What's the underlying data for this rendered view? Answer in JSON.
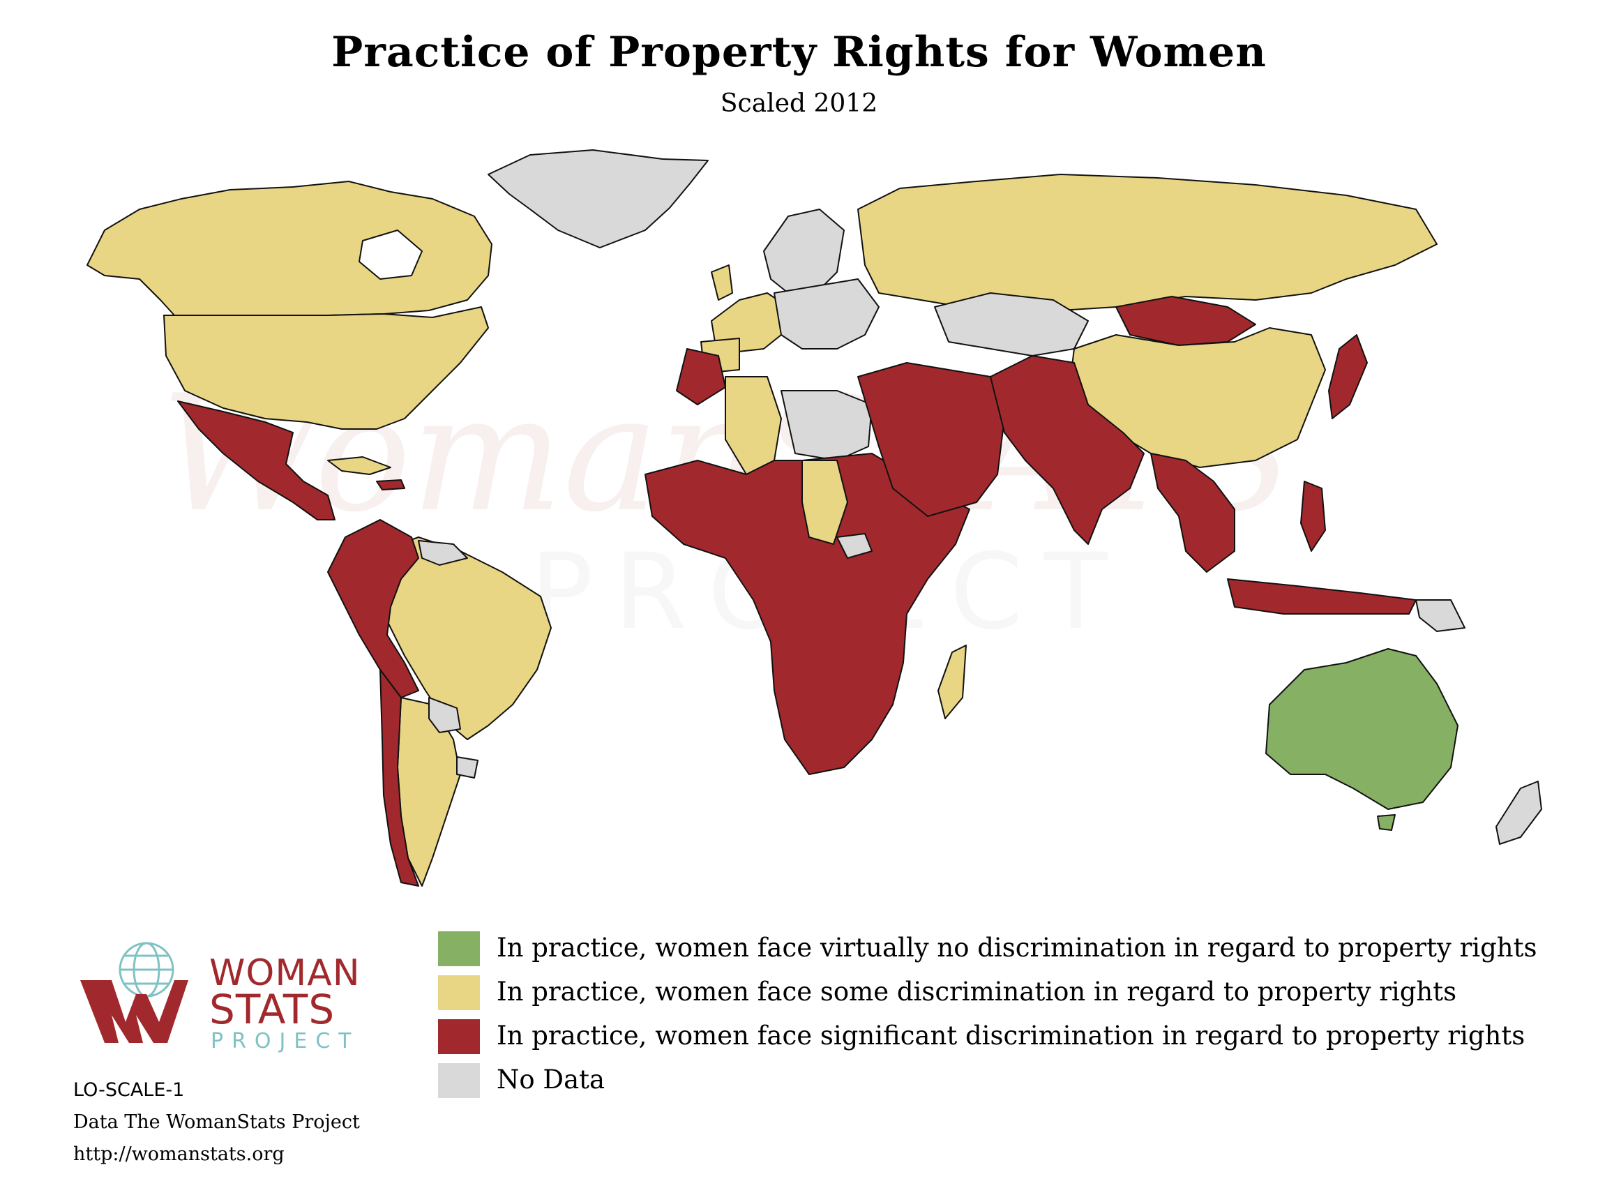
{
  "title": "Practice of Property Rights for Women",
  "subtitle": "Scaled 2012",
  "colors": {
    "none": "#86b064",
    "some": "#e9d684",
    "significant": "#a1292d",
    "no_data": "#d9d9d9",
    "logo_red": "#a1292d",
    "logo_teal": "#7fc2c3"
  },
  "legend": [
    {
      "key": "none",
      "label": "In practice, women face virtually no discrimination in regard to property rights"
    },
    {
      "key": "some",
      "label": "In practice, women face some discrimination in regard to property rights"
    },
    {
      "key": "significant",
      "label": "In practice, women face significant discrimination in regard to property rights"
    },
    {
      "key": "no_data",
      "label": "No Data"
    }
  ],
  "logo": {
    "line1": "WOMAN",
    "line2": "STATS",
    "line3": "PROJECT"
  },
  "watermark": {
    "line1": "WomanSTATS",
    "line2": "PROJECT"
  },
  "credits": {
    "code": "LO-SCALE-1",
    "source": "Data The WomanStats Project",
    "url": "http://womanstats.org"
  }
}
